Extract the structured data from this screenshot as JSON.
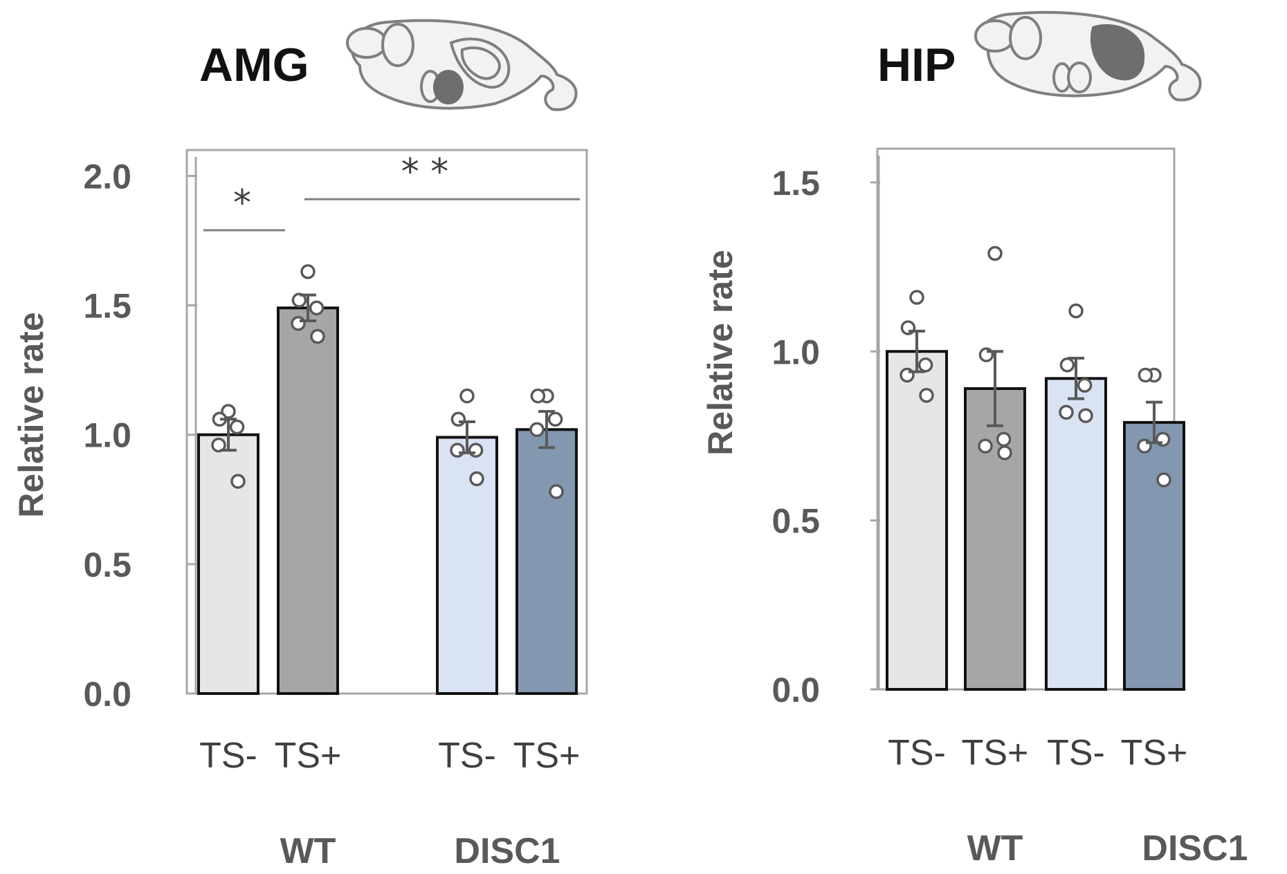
{
  "chart_data": [
    {
      "type": "bar",
      "title": "AMG",
      "ylabel": "Relative rate",
      "xlabel": "",
      "ylim": [
        0,
        2.1
      ],
      "yticks": [
        0.0,
        0.5,
        1.0,
        1.5,
        2.0
      ],
      "ytick_labels": [
        "0.0",
        "0.5",
        "1.0",
        "1.5",
        "2.0"
      ],
      "categories": [
        "TS-",
        "TS+",
        "TS-",
        "TS+"
      ],
      "groups": [
        "WT",
        "DISC1"
      ],
      "bar_colors": [
        "#e6e6e6",
        "#a6a6a6",
        "#dae3f3",
        "#8497b0"
      ],
      "values": [
        1.0,
        1.49,
        0.99,
        1.02
      ],
      "errors": [
        0.06,
        0.05,
        0.06,
        0.07
      ],
      "points": [
        [
          1.09,
          1.06,
          1.03,
          0.96,
          0.82
        ],
        [
          1.63,
          1.52,
          1.49,
          1.43,
          1.38
        ],
        [
          1.15,
          1.06,
          0.94,
          0.94,
          0.83
        ],
        [
          1.15,
          1.15,
          1.06,
          1.02,
          0.78
        ]
      ],
      "significance": [
        {
          "label": "*",
          "from": 0,
          "to": 1,
          "y": 1.79
        },
        {
          "label": "* *",
          "from": 1,
          "to": 3,
          "y": 1.91
        }
      ]
    },
    {
      "type": "bar",
      "title": "HIP",
      "ylabel": "Relative rate",
      "xlabel": "",
      "ylim": [
        0,
        1.6
      ],
      "yticks": [
        0.0,
        0.5,
        1.0,
        1.5
      ],
      "ytick_labels": [
        "0.0",
        "0.5",
        "1.0",
        "1.5"
      ],
      "categories": [
        "TS-",
        "TS+",
        "TS-",
        "TS+"
      ],
      "groups": [
        "WT",
        "DISC1"
      ],
      "bar_colors": [
        "#e6e6e6",
        "#a6a6a6",
        "#dae3f3",
        "#8497b0"
      ],
      "values": [
        1.0,
        0.89,
        0.92,
        0.79
      ],
      "errors": [
        0.06,
        0.11,
        0.06,
        0.06
      ],
      "points": [
        [
          1.16,
          1.07,
          0.96,
          0.93,
          0.87
        ],
        [
          1.29,
          0.99,
          0.74,
          0.72,
          0.7
        ],
        [
          1.12,
          0.96,
          0.9,
          0.82,
          0.81
        ],
        [
          0.93,
          0.93,
          0.74,
          0.72,
          0.62
        ]
      ],
      "significance": []
    }
  ],
  "icons": [
    "mouse-brain-amygdala-icon",
    "mouse-brain-hippocampus-icon"
  ]
}
